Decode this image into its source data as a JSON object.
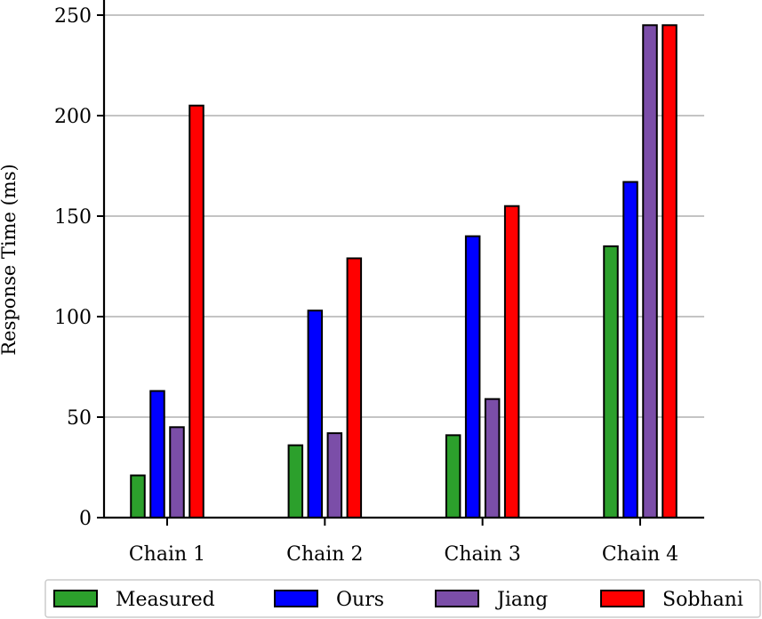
{
  "chart_data": {
    "type": "bar",
    "title": "",
    "xlabel": "",
    "ylabel": "Response Time (ms)",
    "ylim": [
      0,
      250
    ],
    "yticks": [
      0,
      50,
      100,
      150,
      200,
      250
    ],
    "grid": "horizontal",
    "legend_position": "bottom",
    "categories": [
      "Chain 1",
      "Chain 2",
      "Chain 3",
      "Chain 4"
    ],
    "series": [
      {
        "name": "Measured",
        "color": "#2ca02c",
        "values": [
          21,
          36,
          41,
          135
        ]
      },
      {
        "name": "Ours",
        "color": "#0000ff",
        "values": [
          63,
          103,
          140,
          167
        ]
      },
      {
        "name": "Jiang",
        "color": "#7b4ea8",
        "values": [
          45,
          42,
          59,
          245
        ]
      },
      {
        "name": "Sobhani",
        "color": "#ff0000",
        "values": [
          205,
          129,
          155,
          245
        ]
      }
    ]
  }
}
